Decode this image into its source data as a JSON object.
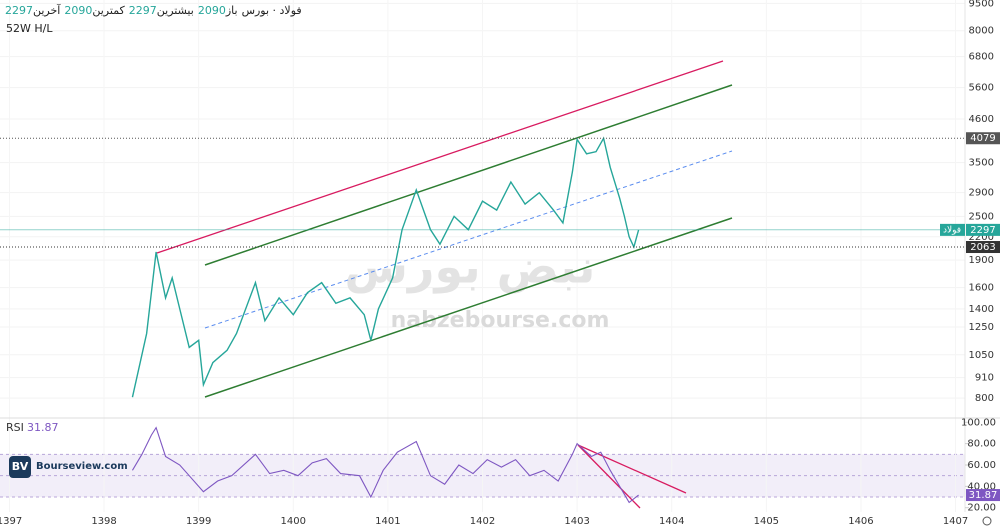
{
  "chart_data": {
    "type": "line",
    "title": "فولاد · بورس",
    "ohlc": [
      {
        "label": "باز",
        "value": 2090
      },
      {
        "label": "بیشترین",
        "value": 2297
      },
      {
        "label": "کمترین",
        "value": 2090
      },
      {
        "label": "آخرین",
        "value": 2297
      }
    ],
    "subtitle": "52W H/L",
    "log_scale": true,
    "xlim": [
      1396.9,
      1407.1
    ],
    "xticks": [
      1397,
      1398,
      1399,
      1400,
      1401,
      1402,
      1403,
      1404,
      1405,
      1406,
      1407
    ],
    "ylim": [
      720,
      9700
    ],
    "yticks": [
      800,
      910,
      1050,
      1250,
      1400,
      1600,
      1900,
      2200,
      2500,
      2900,
      3500,
      4600,
      5600,
      6800,
      8000,
      9500
    ],
    "series": [
      {
        "name": "فولاد",
        "color": "#26a69a",
        "x": [
          1398.3,
          1398.45,
          1398.55,
          1398.65,
          1398.72,
          1398.8,
          1398.9,
          1399.0,
          1399.05,
          1399.15,
          1399.3,
          1399.4,
          1399.6,
          1399.7,
          1399.85,
          1400.0,
          1400.15,
          1400.3,
          1400.45,
          1400.6,
          1400.75,
          1400.82,
          1400.9,
          1401.05,
          1401.15,
          1401.3,
          1401.45,
          1401.55,
          1401.7,
          1401.85,
          1402.0,
          1402.15,
          1402.3,
          1402.45,
          1402.6,
          1402.75,
          1402.85,
          1402.95,
          1403.0,
          1403.1,
          1403.2,
          1403.28,
          1403.35,
          1403.45,
          1403.5,
          1403.55,
          1403.6,
          1403.65
        ],
        "values": [
          805,
          1200,
          2000,
          1500,
          1700,
          1400,
          1100,
          1150,
          870,
          1000,
          1080,
          1200,
          1650,
          1300,
          1500,
          1350,
          1550,
          1650,
          1450,
          1500,
          1350,
          1150,
          1400,
          1700,
          2300,
          2950,
          2300,
          2100,
          2500,
          2300,
          2750,
          2600,
          3100,
          2700,
          2900,
          2600,
          2400,
          3300,
          4050,
          3700,
          3750,
          4079,
          3400,
          2800,
          2500,
          2200,
          2063,
          2297
        ]
      }
    ],
    "price_markers": [
      {
        "value": 4079
      },
      {
        "label": "فولاد",
        "value": 2297
      },
      {
        "value": 2063
      }
    ],
    "rsi": {
      "name": "RSI",
      "current": 31.87,
      "color": "#7e57c2",
      "ylim": [
        16,
        104
      ],
      "yticks": [
        {
          "value": 100,
          "label": "100.00"
        },
        {
          "value": 80,
          "label": "80.00"
        },
        {
          "value": 60,
          "label": "60.00"
        },
        {
          "value": 40,
          "label": "40.00"
        },
        {
          "value": 20,
          "label": "20.00"
        }
      ],
      "current_label": {
        "value": 31.87,
        "label": "31.87"
      },
      "x": [
        1398.3,
        1398.4,
        1398.5,
        1398.55,
        1398.65,
        1398.8,
        1398.9,
        1399.05,
        1399.2,
        1399.35,
        1399.6,
        1399.75,
        1399.9,
        1400.05,
        1400.2,
        1400.35,
        1400.5,
        1400.7,
        1400.82,
        1400.95,
        1401.1,
        1401.3,
        1401.45,
        1401.6,
        1401.75,
        1401.9,
        1402.05,
        1402.2,
        1402.35,
        1402.5,
        1402.65,
        1402.8,
        1402.95,
        1403.0,
        1403.15,
        1403.25,
        1403.35,
        1403.45,
        1403.55,
        1403.65
      ],
      "values": [
        55,
        70,
        88,
        95,
        68,
        60,
        50,
        35,
        45,
        50,
        70,
        52,
        55,
        50,
        62,
        66,
        52,
        50,
        30,
        55,
        72,
        82,
        50,
        42,
        60,
        52,
        65,
        58,
        65,
        50,
        55,
        45,
        70,
        80,
        68,
        72,
        55,
        40,
        25,
        31.87
      ]
    },
    "watermark": "nabzebourse.com",
    "logo_text": "نبض بورس",
    "source": "Bourseview.com"
  }
}
